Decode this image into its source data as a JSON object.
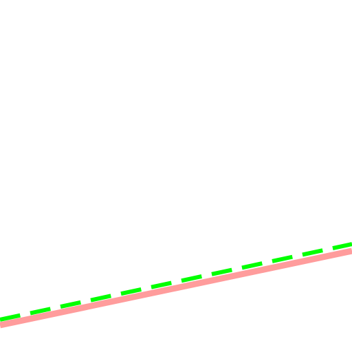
{
  "lines": [
    {
      "name": "salmon-solid-line",
      "color": "#ff9c9c",
      "style": "solid"
    },
    {
      "name": "green-dashed-line",
      "color": "#00ff00",
      "style": "dashed"
    }
  ],
  "background_color": "#ffffff"
}
